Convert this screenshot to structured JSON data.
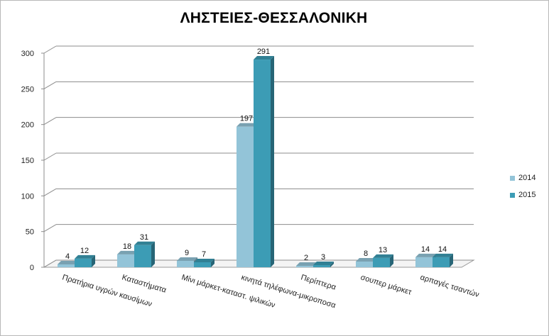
{
  "chart_data": {
    "type": "bar",
    "title": "ΛΗΣΤΕΙΕΣ-ΘΕΣΣΑΛΟΝΙΚΗ",
    "xlabel": "",
    "ylabel": "",
    "ylim": [
      0,
      300
    ],
    "yticks": [
      "0",
      "50",
      "100",
      "150",
      "200",
      "250",
      "300"
    ],
    "grid": true,
    "three_d": true,
    "legend_position": "right",
    "categories": [
      "Πρατήρια υγρών καυσίμων",
      "Καταστήματα",
      "Μίνι μάρκετ-καταστ. ψιλικών",
      "κινητά τηλέφωνα-μικροποσα",
      "Περίπτερα",
      "σουπερ μάρκετ",
      "αρπαγές τσαντών"
    ],
    "series": [
      {
        "name": "2014",
        "values": [
          4,
          18,
          9,
          197,
          2,
          8,
          14
        ],
        "color": "#93c4d8"
      },
      {
        "name": "2015",
        "values": [
          12,
          31,
          7,
          291,
          3,
          13,
          14
        ],
        "color": "#3c9cb5"
      }
    ]
  }
}
